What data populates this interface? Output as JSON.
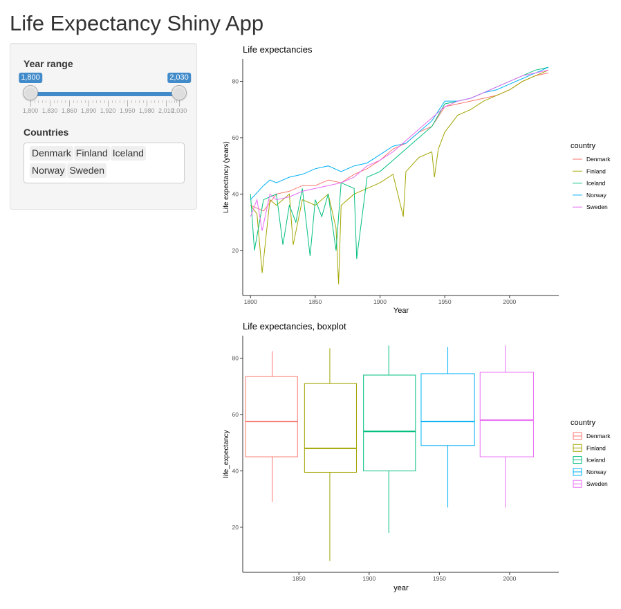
{
  "app": {
    "title": "Life Expectancy Shiny App"
  },
  "sidebar": {
    "year_range": {
      "label": "Year range",
      "min": 1800,
      "max": 2030,
      "value_low": 1800,
      "value_high": 2030,
      "value_low_label": "1,800",
      "value_high_label": "2,030",
      "grid_labels": [
        "1,800",
        "1,830",
        "1,860",
        "1,890",
        "1,920",
        "1,950",
        "1,980",
        "2,010",
        "2,030"
      ],
      "grid_values": [
        1800,
        1830,
        1860,
        1890,
        1920,
        1950,
        1980,
        2010,
        2030
      ],
      "accent_color": "#428bca"
    },
    "countries": {
      "label": "Countries",
      "selected": [
        "Denmark",
        "Finland",
        "Iceland",
        "Norway",
        "Sweden"
      ]
    }
  },
  "chart_data": [
    {
      "type": "line",
      "title": "Life expectancies",
      "xlabel": "Year",
      "ylabel": "Life expectancy (years)",
      "xlim": [
        1794,
        2038
      ],
      "ylim": [
        4,
        88
      ],
      "x_ticks": [
        1800,
        1850,
        1900,
        1950,
        2000
      ],
      "y_ticks": [
        20,
        40,
        60,
        80
      ],
      "grid": false,
      "legend": {
        "title": "country",
        "position": "right"
      },
      "series": [
        {
          "name": "Denmark",
          "color": "#F8766D",
          "x": [
            1800,
            1810,
            1820,
            1830,
            1840,
            1850,
            1860,
            1870,
            1880,
            1890,
            1900,
            1910,
            1920,
            1930,
            1940,
            1950,
            1960,
            1970,
            1980,
            1990,
            2000,
            2010,
            2020,
            2030
          ],
          "y": [
            36,
            34,
            40,
            41,
            43,
            43,
            45,
            44,
            47,
            49,
            52,
            56,
            58,
            62,
            64,
            71,
            72,
            73,
            74,
            75,
            77,
            80,
            82,
            83
          ]
        },
        {
          "name": "Finland",
          "color": "#A3A500",
          "x": [
            1800,
            1805,
            1809,
            1815,
            1820,
            1830,
            1833,
            1840,
            1850,
            1860,
            1866,
            1868,
            1870,
            1880,
            1890,
            1900,
            1910,
            1918,
            1920,
            1930,
            1940,
            1942,
            1945,
            1950,
            1960,
            1970,
            1980,
            1990,
            2000,
            2010,
            2020,
            2030
          ],
          "y": [
            36,
            33,
            12,
            38,
            36,
            40,
            22,
            38,
            36,
            40,
            28,
            8,
            36,
            40,
            42,
            44,
            47,
            32,
            48,
            53,
            55,
            46,
            56,
            62,
            68,
            70,
            73,
            75,
            77,
            80,
            82,
            84
          ]
        },
        {
          "name": "Iceland",
          "color": "#00BF7D",
          "x": [
            1800,
            1803,
            1810,
            1820,
            1825,
            1830,
            1835,
            1840,
            1846,
            1850,
            1855,
            1860,
            1866,
            1870,
            1880,
            1882,
            1890,
            1900,
            1910,
            1920,
            1930,
            1940,
            1950,
            1960,
            1970,
            1980,
            1990,
            2000,
            2010,
            2020,
            2030
          ],
          "y": [
            40,
            20,
            38,
            40,
            22,
            36,
            30,
            42,
            18,
            38,
            32,
            40,
            20,
            44,
            42,
            17,
            46,
            48,
            52,
            56,
            60,
            64,
            72,
            73,
            74,
            76,
            78,
            80,
            82,
            84,
            85
          ]
        },
        {
          "name": "Norway",
          "color": "#00B0F6",
          "x": [
            1800,
            1810,
            1815,
            1820,
            1830,
            1840,
            1850,
            1860,
            1870,
            1880,
            1890,
            1900,
            1910,
            1920,
            1930,
            1940,
            1950,
            1960,
            1970,
            1980,
            1990,
            2000,
            2010,
            2020,
            2030
          ],
          "y": [
            38,
            43,
            45,
            44,
            46,
            47,
            49,
            50,
            48,
            50,
            51,
            54,
            57,
            58,
            62,
            66,
            73,
            73,
            74,
            76,
            77,
            79,
            81,
            83,
            85
          ]
        },
        {
          "name": "Sweden",
          "color": "#E76BF3",
          "x": [
            1800,
            1805,
            1809,
            1815,
            1820,
            1830,
            1840,
            1850,
            1860,
            1870,
            1880,
            1890,
            1900,
            1910,
            1920,
            1930,
            1940,
            1950,
            1960,
            1970,
            1980,
            1990,
            2000,
            2010,
            2020,
            2030
          ],
          "y": [
            32,
            38,
            27,
            40,
            38,
            39,
            41,
            42,
            43,
            44,
            46,
            50,
            52,
            55,
            59,
            63,
            67,
            71,
            73,
            74,
            76,
            78,
            80,
            82,
            83,
            84
          ]
        }
      ]
    },
    {
      "type": "boxplot",
      "title": "Life expectancies, boxplot",
      "xlabel": "year",
      "ylabel": "life_expectancy",
      "xlim": [
        1810,
        2035
      ],
      "ylim": [
        4,
        88
      ],
      "x_ticks": [
        1850,
        1900,
        1950,
        2000
      ],
      "y_ticks": [
        20,
        40,
        60,
        80
      ],
      "grid": false,
      "legend": {
        "title": "country",
        "position": "right"
      },
      "boxes": [
        {
          "name": "Denmark",
          "color": "#F8766D",
          "x_center": 1831,
          "x_from": 1812,
          "x_to": 1849,
          "min": 29,
          "q1": 45,
          "median": 57.5,
          "q3": 73.5,
          "max": 82.5
        },
        {
          "name": "Finland",
          "color": "#A3A500",
          "x_center": 1872,
          "x_from": 1854,
          "x_to": 1891,
          "min": 8,
          "q1": 39.5,
          "median": 48,
          "q3": 71,
          "max": 83.5
        },
        {
          "name": "Iceland",
          "color": "#00BF7D",
          "x_center": 1914,
          "x_from": 1896,
          "x_to": 1933,
          "min": 18,
          "q1": 40,
          "median": 54,
          "q3": 74,
          "max": 84.5
        },
        {
          "name": "Norway",
          "color": "#00B0F6",
          "x_center": 1956,
          "x_from": 1937,
          "x_to": 1975,
          "min": 27,
          "q1": 49,
          "median": 57.5,
          "q3": 74.5,
          "max": 84
        },
        {
          "name": "Sweden",
          "color": "#E76BF3",
          "x_center": 1997,
          "x_from": 1979,
          "x_to": 2017,
          "min": 27,
          "q1": 45,
          "median": 58,
          "q3": 75,
          "max": 84.5
        }
      ]
    }
  ]
}
